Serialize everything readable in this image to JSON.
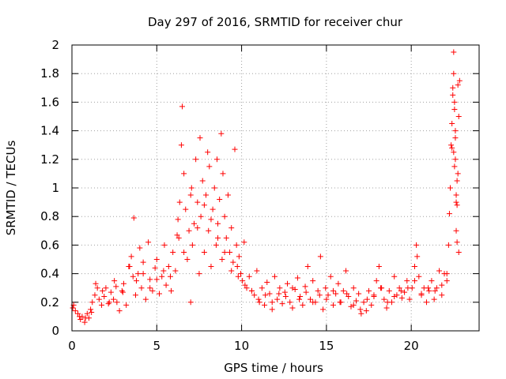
{
  "chart_data": {
    "type": "scatter",
    "title": "Day 297 of 2016, SRMTID for receiver chur",
    "xlabel": "GPS time / hours",
    "ylabel": "SRMTID / TECUs",
    "xlim": [
      0,
      24
    ],
    "ylim": [
      0,
      2
    ],
    "xticks": [
      0,
      5,
      10,
      15,
      20
    ],
    "xtick_labels": [
      "0",
      "5",
      "10",
      "15",
      "20"
    ],
    "yticks": [
      0,
      0.2,
      0.4,
      0.6,
      0.8,
      1,
      1.2,
      1.4,
      1.6,
      1.8,
      2
    ],
    "ytick_labels": [
      "0",
      "0.2",
      "0.4",
      "0.6",
      "0.8",
      "1",
      "1.2",
      "1.4",
      "1.6",
      "1.8",
      "2"
    ],
    "grid": true,
    "marker": "+",
    "color": "#ff0000",
    "series": [
      {
        "name": "SRMTID",
        "x": [
          0.05,
          0.2,
          0.35,
          0.5,
          0.6,
          0.75,
          0.9,
          1.0,
          1.15,
          1.2,
          1.35,
          1.5,
          1.6,
          1.75,
          1.9,
          2.0,
          2.15,
          2.3,
          2.45,
          2.5,
          2.65,
          2.8,
          2.95,
          3.05,
          3.2,
          3.35,
          3.5,
          3.6,
          3.65,
          3.75,
          3.9,
          4.0,
          4.1,
          4.2,
          4.35,
          4.5,
          4.6,
          4.75,
          4.9,
          5.0,
          5.15,
          5.3,
          5.45,
          5.55,
          5.7,
          5.85,
          5.95,
          6.1,
          6.25,
          6.3,
          6.35,
          6.45,
          6.5,
          6.6,
          6.7,
          6.8,
          6.9,
          7.0,
          7.05,
          7.1,
          7.2,
          7.3,
          7.4,
          7.5,
          7.55,
          7.6,
          7.7,
          7.8,
          7.9,
          8.0,
          8.05,
          8.1,
          8.2,
          8.3,
          8.4,
          8.5,
          8.55,
          8.6,
          8.7,
          8.8,
          8.85,
          8.9,
          9.0,
          9.1,
          9.2,
          9.3,
          9.4,
          9.5,
          9.6,
          9.7,
          9.75,
          9.85,
          9.95,
          10.05,
          10.15,
          10.3,
          10.45,
          10.6,
          10.75,
          10.9,
          11.05,
          11.2,
          11.35,
          11.5,
          11.65,
          11.8,
          11.95,
          12.1,
          12.25,
          12.4,
          12.55,
          12.7,
          12.85,
          13.0,
          13.15,
          13.3,
          13.45,
          13.6,
          13.75,
          13.9,
          14.05,
          14.2,
          14.35,
          14.5,
          14.65,
          14.8,
          14.95,
          15.1,
          15.25,
          15.4,
          15.55,
          15.7,
          15.85,
          16.0,
          16.15,
          16.3,
          16.45,
          16.6,
          16.75,
          16.9,
          17.05,
          17.2,
          17.35,
          17.5,
          17.65,
          17.8,
          17.95,
          18.1,
          18.25,
          18.4,
          18.55,
          18.7,
          18.85,
          19.0,
          19.15,
          19.3,
          19.45,
          19.6,
          19.75,
          19.9,
          20.05,
          20.2,
          20.3,
          20.35,
          20.45,
          20.6,
          20.75,
          20.9,
          21.05,
          21.2,
          21.35,
          21.5,
          21.65,
          21.8,
          21.95,
          22.1,
          22.2,
          22.25,
          22.3,
          22.35,
          22.4,
          22.45,
          22.5,
          22.55,
          22.6,
          22.65,
          22.7,
          22.75,
          22.8,
          22.85,
          22.6,
          22.5,
          22.65,
          22.55,
          22.7,
          22.45,
          22.8,
          22.6,
          22.5,
          22.7,
          22.4,
          22.65,
          22.55,
          22.75,
          0.1,
          0.45,
          0.8,
          1.1,
          1.4,
          1.8,
          2.2,
          2.6,
          3.0,
          3.4,
          3.8,
          4.2,
          4.6,
          5.0,
          5.4,
          5.8,
          6.2,
          6.6,
          7.0,
          7.4,
          7.8,
          8.2,
          8.6,
          9.0,
          9.4,
          9.8,
          10.2,
          10.6,
          11.0,
          11.4,
          11.8,
          12.2,
          12.6,
          13.0,
          13.4,
          13.8,
          14.2,
          14.6,
          15.0,
          15.4,
          15.8,
          16.2,
          16.6,
          17.0,
          17.4,
          17.8,
          18.2,
          18.6,
          19.0,
          19.4,
          19.8,
          20.2,
          20.6,
          21.0,
          21.4,
          21.8,
          22.1
        ],
        "y": [
          0.16,
          0.14,
          0.12,
          0.08,
          0.1,
          0.06,
          0.12,
          0.09,
          0.13,
          0.2,
          0.25,
          0.3,
          0.22,
          0.18,
          0.24,
          0.3,
          0.19,
          0.27,
          0.22,
          0.35,
          0.2,
          0.14,
          0.28,
          0.33,
          0.18,
          0.45,
          0.52,
          0.38,
          0.79,
          0.25,
          0.4,
          0.58,
          0.3,
          0.48,
          0.22,
          0.62,
          0.36,
          0.28,
          0.44,
          0.5,
          0.26,
          0.38,
          0.6,
          0.32,
          0.45,
          0.28,
          0.55,
          0.42,
          0.78,
          0.65,
          0.9,
          1.3,
          1.57,
          1.1,
          0.85,
          0.5,
          0.7,
          0.2,
          1.0,
          0.6,
          0.75,
          1.2,
          0.9,
          0.4,
          1.35,
          0.8,
          1.05,
          0.55,
          0.95,
          1.25,
          0.7,
          1.15,
          0.45,
          0.85,
          1.0,
          0.6,
          1.2,
          0.75,
          0.92,
          1.38,
          0.5,
          1.1,
          0.8,
          0.65,
          0.95,
          0.55,
          0.72,
          0.48,
          1.27,
          0.6,
          0.45,
          0.52,
          0.4,
          0.35,
          0.62,
          0.3,
          0.38,
          0.28,
          0.25,
          0.42,
          0.2,
          0.3,
          0.18,
          0.34,
          0.26,
          0.15,
          0.38,
          0.22,
          0.3,
          0.19,
          0.27,
          0.33,
          0.2,
          0.16,
          0.29,
          0.37,
          0.24,
          0.18,
          0.31,
          0.45,
          0.22,
          0.35,
          0.2,
          0.28,
          0.52,
          0.15,
          0.3,
          0.25,
          0.38,
          0.18,
          0.26,
          0.33,
          0.2,
          0.28,
          0.42,
          0.24,
          0.17,
          0.3,
          0.21,
          0.26,
          0.12,
          0.2,
          0.14,
          0.28,
          0.18,
          0.24,
          0.35,
          0.45,
          0.3,
          0.22,
          0.16,
          0.28,
          0.2,
          0.38,
          0.25,
          0.3,
          0.23,
          0.27,
          0.35,
          0.22,
          0.3,
          0.45,
          0.6,
          0.52,
          0.38,
          0.25,
          0.3,
          0.2,
          0.28,
          0.35,
          0.22,
          0.3,
          0.42,
          0.25,
          0.4,
          0.35,
          0.6,
          0.82,
          1.0,
          1.3,
          1.45,
          1.7,
          1.95,
          1.6,
          1.2,
          0.7,
          0.88,
          1.1,
          1.5,
          1.75,
          1.4,
          1.25,
          0.9,
          1.15,
          1.05,
          1.65,
          0.55,
          1.35,
          1.8,
          0.62,
          1.28,
          0.95,
          1.55,
          1.72,
          0.18,
          0.1,
          0.09,
          0.15,
          0.33,
          0.28,
          0.2,
          0.31,
          0.27,
          0.45,
          0.35,
          0.4,
          0.3,
          0.36,
          0.42,
          0.38,
          0.67,
          0.55,
          0.95,
          0.72,
          0.88,
          0.78,
          0.65,
          0.55,
          0.42,
          0.38,
          0.32,
          0.28,
          0.22,
          0.25,
          0.2,
          0.26,
          0.24,
          0.3,
          0.22,
          0.27,
          0.2,
          0.25,
          0.22,
          0.28,
          0.2,
          0.26,
          0.18,
          0.15,
          0.22,
          0.25,
          0.3,
          0.2,
          0.24,
          0.28,
          0.3,
          0.35,
          0.26,
          0.3,
          0.28,
          0.32,
          0.4
        ]
      }
    ]
  }
}
